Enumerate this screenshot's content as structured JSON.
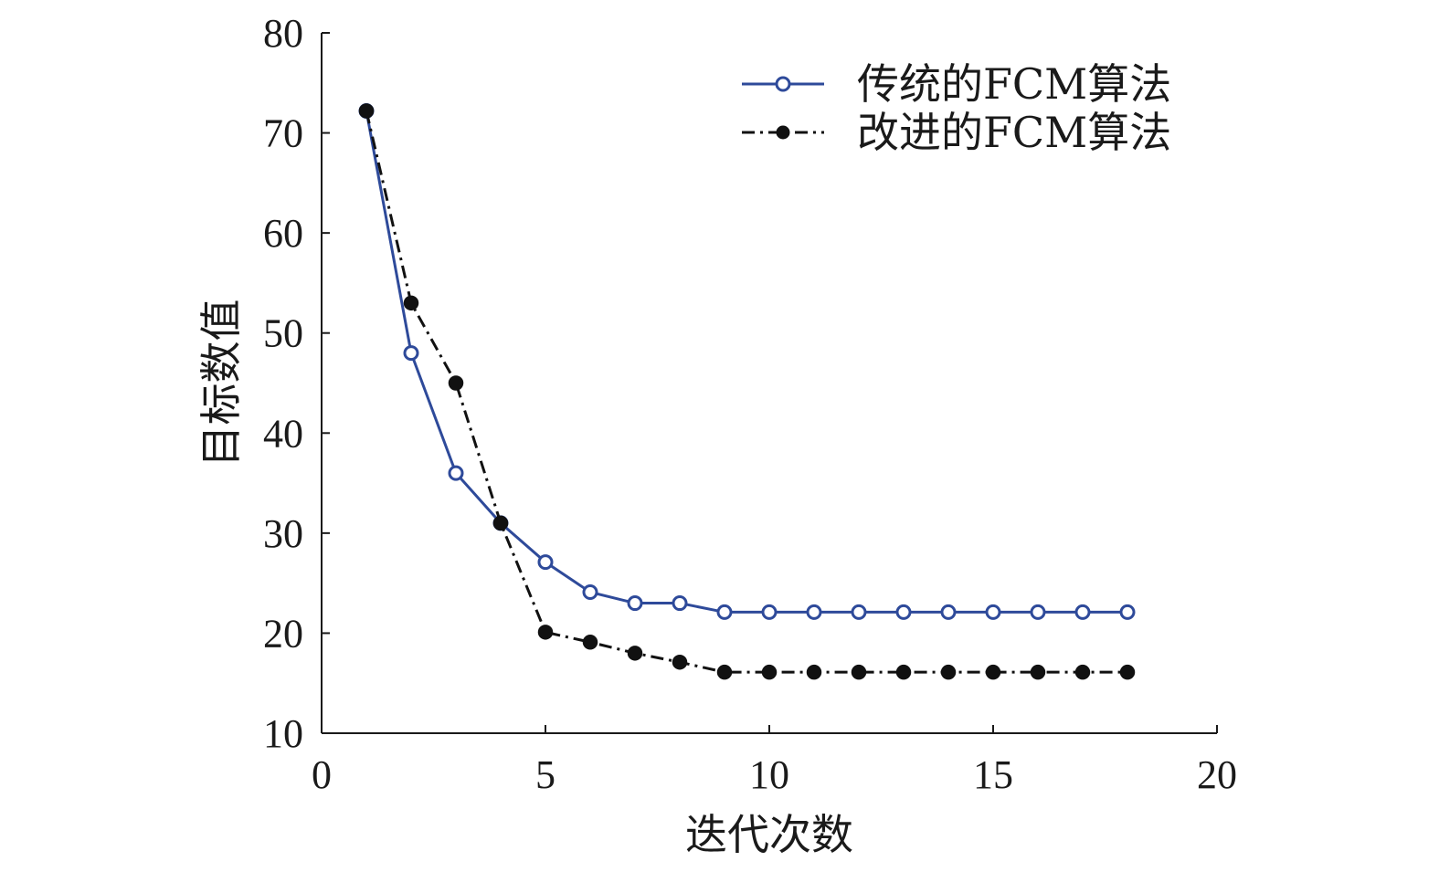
{
  "chart_data": {
    "type": "line",
    "xlabel": "迭代次数",
    "ylabel": "目标数值",
    "xlim": [
      0,
      20
    ],
    "ylim": [
      10,
      80
    ],
    "xticks": [
      0,
      5,
      10,
      15,
      20
    ],
    "yticks": [
      10,
      20,
      30,
      40,
      50,
      60,
      70,
      80
    ],
    "grid": false,
    "legend_position": "top-right",
    "x": [
      1,
      2,
      3,
      4,
      5,
      6,
      7,
      8,
      9,
      10,
      11,
      12,
      13,
      14,
      15,
      16,
      17,
      18
    ],
    "series": [
      {
        "name": "传统的FCM算法",
        "color": "#2e4a9a",
        "line_style": "solid",
        "marker": "open-circle",
        "values": [
          72.2,
          48.0,
          36.0,
          31.0,
          27.1,
          24.1,
          23.0,
          23.0,
          22.1,
          22.1,
          22.1,
          22.1,
          22.1,
          22.1,
          22.1,
          22.1,
          22.1,
          22.1
        ]
      },
      {
        "name": "改进的FCM算法",
        "color": "#111111",
        "line_style": "dash-dot",
        "marker": "filled-circle",
        "values": [
          72.2,
          53.0,
          45.0,
          31.0,
          20.1,
          19.1,
          18.0,
          17.1,
          16.1,
          16.1,
          16.1,
          16.1,
          16.1,
          16.1,
          16.1,
          16.1,
          16.1,
          16.1
        ]
      }
    ]
  }
}
